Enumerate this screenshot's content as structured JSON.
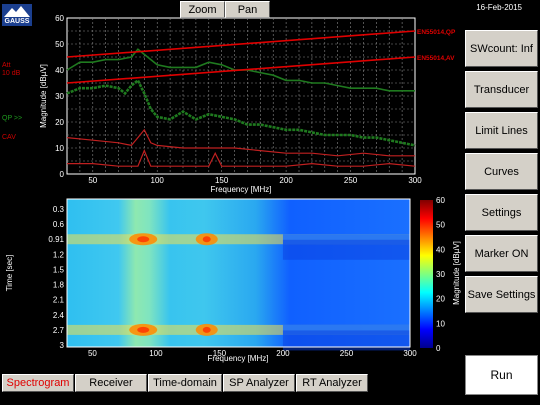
{
  "header": {
    "logo_text": "GAUSS",
    "date": "16-Feb-2015"
  },
  "toolbar": {
    "zoom_label": "Zoom",
    "pan_label": "Pan"
  },
  "left_labels": {
    "att": "Att",
    "att_value": "10 dB",
    "qp": "QP >>",
    "cav": "CAV"
  },
  "sidebar": {
    "items": [
      {
        "label": "SWcount: Inf"
      },
      {
        "label": "Transducer"
      },
      {
        "label": "Limit Lines"
      },
      {
        "label": "Curves"
      },
      {
        "label": "Settings"
      },
      {
        "label": "Marker ON"
      },
      {
        "label": "Save Settings"
      }
    ],
    "run_label": "Run"
  },
  "tabs": [
    {
      "label": "Spectrogram",
      "active": true
    },
    {
      "label": "Receiver",
      "active": false
    },
    {
      "label": "Time-domain",
      "active": false
    },
    {
      "label": "SP Analyzer",
      "active": false
    },
    {
      "label": "RT Analyzer",
      "active": false
    }
  ],
  "colors": {
    "limit": "#e00000",
    "qp": "#1f7a1f",
    "cav": "#c02020",
    "button": "#d4d0c8"
  },
  "chart_data": [
    {
      "type": "line",
      "xlabel": "Frequency [MHz]",
      "ylabel": "Magnitude [dBµV]",
      "xlim": [
        30,
        300
      ],
      "ylim": [
        0,
        60
      ],
      "xticks": [
        50,
        100,
        150,
        200,
        250,
        300
      ],
      "yticks": [
        0,
        10,
        20,
        30,
        40,
        50,
        60
      ],
      "grid": true,
      "limit_lines": [
        {
          "name": "EN55014,QP",
          "x": [
            30,
            300
          ],
          "y": [
            45,
            55
          ]
        },
        {
          "name": "EN55014,AV",
          "x": [
            30,
            300
          ],
          "y": [
            35,
            45
          ]
        }
      ],
      "series": [
        {
          "x": [
            30,
            40,
            50,
            60,
            70,
            80,
            85,
            90,
            95,
            100,
            110,
            120,
            130,
            140,
            150,
            160,
            170,
            180,
            190,
            200,
            210,
            220,
            230,
            240,
            250,
            260,
            270,
            280,
            290,
            300
          ],
          "y": [
            40,
            43,
            43,
            44,
            44,
            45,
            48,
            46,
            44,
            42,
            41,
            41,
            41,
            43,
            42,
            40,
            40,
            39,
            38,
            36,
            36,
            35,
            35,
            34,
            33,
            33,
            33,
            32,
            32,
            32
          ]
        },
        {
          "x": [
            30,
            40,
            50,
            60,
            70,
            75,
            80,
            85,
            90,
            95,
            100,
            110,
            120,
            130,
            140,
            150,
            160,
            170,
            180,
            190,
            200,
            210,
            220,
            230,
            240,
            250,
            260,
            270,
            280,
            290,
            300
          ],
          "y": [
            31,
            33,
            33,
            34,
            33,
            31,
            34,
            36,
            31,
            25,
            22,
            21,
            24,
            21,
            23,
            22,
            21,
            19,
            19,
            18,
            17,
            17,
            16,
            15,
            15,
            15,
            14,
            14,
            13,
            12,
            11
          ]
        },
        {
          "x": [
            30,
            50,
            70,
            80,
            85,
            90,
            95,
            100,
            120,
            140,
            160,
            180,
            200,
            220,
            240,
            260,
            280,
            300
          ],
          "y": [
            14,
            13,
            12,
            11,
            14,
            17,
            12,
            11,
            10,
            10,
            10,
            9,
            8,
            8,
            7,
            8,
            7,
            7
          ]
        },
        {
          "x": [
            30,
            50,
            70,
            85,
            90,
            95,
            100,
            140,
            145,
            150,
            180,
            200,
            220,
            240,
            260,
            280,
            300
          ],
          "y": [
            4,
            4,
            3,
            3,
            9,
            3,
            3,
            3,
            8,
            3,
            3,
            3,
            4,
            3,
            3,
            4,
            3
          ]
        }
      ]
    },
    {
      "type": "heatmap",
      "xlabel": "Frequency [MHz]",
      "ylabel": "Time [sec]",
      "xlim": [
        30,
        300
      ],
      "xticks": [
        50,
        100,
        150,
        200,
        250,
        300
      ],
      "ytick_labels": [
        "0.3",
        "0.6",
        "0.91",
        "1.2",
        "1.5",
        "1.8",
        "2.1",
        "2.4",
        "2.7",
        "3"
      ],
      "colorbar": {
        "label": "Magnitude [dBµV]",
        "ticks": [
          0,
          10,
          20,
          30,
          40,
          50,
          60
        ],
        "range": [
          0,
          60
        ]
      },
      "hot_rows": [
        "0.91",
        "2.7"
      ],
      "hot_frequencies_mhz": [
        90,
        140
      ]
    }
  ]
}
